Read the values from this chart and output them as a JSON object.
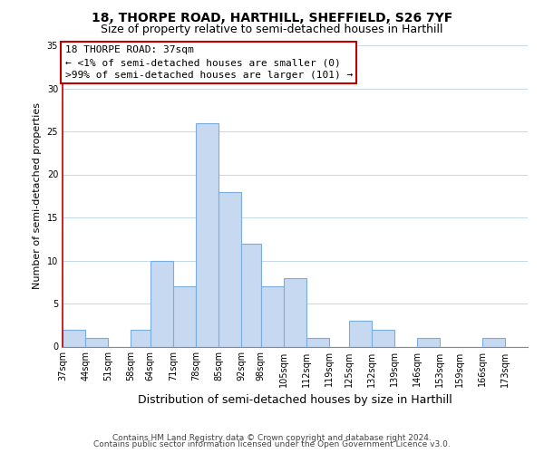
{
  "title": "18, THORPE ROAD, HARTHILL, SHEFFIELD, S26 7YF",
  "subtitle": "Size of property relative to semi-detached houses in Harthill",
  "xlabel": "Distribution of semi-detached houses by size in Harthill",
  "ylabel": "Number of semi-detached properties",
  "bin_labels": [
    "37sqm",
    "44sqm",
    "51sqm",
    "58sqm",
    "64sqm",
    "71sqm",
    "78sqm",
    "85sqm",
    "92sqm",
    "98sqm",
    "105sqm",
    "112sqm",
    "119sqm",
    "125sqm",
    "132sqm",
    "139sqm",
    "146sqm",
    "153sqm",
    "159sqm",
    "166sqm",
    "173sqm"
  ],
  "bin_edges": [
    37,
    44,
    51,
    58,
    64,
    71,
    78,
    85,
    92,
    98,
    105,
    112,
    119,
    125,
    132,
    139,
    146,
    153,
    159,
    166,
    173,
    180
  ],
  "counts": [
    2,
    1,
    0,
    2,
    10,
    7,
    26,
    18,
    12,
    7,
    8,
    1,
    0,
    3,
    2,
    0,
    1,
    0,
    0,
    1,
    0
  ],
  "bar_color": "#c6d9f1",
  "bar_edge_color": "#7aadde",
  "annotation_line1": "18 THORPE ROAD: 37sqm",
  "annotation_line2": "← <1% of semi-detached houses are smaller (0)",
  "annotation_line3": ">99% of semi-detached houses are larger (101) →",
  "annotation_box_color": "#ffffff",
  "annotation_box_edge": "#c00000",
  "ylim": [
    0,
    35
  ],
  "yticks": [
    0,
    5,
    10,
    15,
    20,
    25,
    30,
    35
  ],
  "footer1": "Contains HM Land Registry data © Crown copyright and database right 2024.",
  "footer2": "Contains public sector information licensed under the Open Government Licence v3.0.",
  "title_fontsize": 10,
  "subtitle_fontsize": 9,
  "xlabel_fontsize": 9,
  "ylabel_fontsize": 8,
  "tick_fontsize": 7,
  "annotation_fontsize": 8,
  "footer_fontsize": 6.5
}
